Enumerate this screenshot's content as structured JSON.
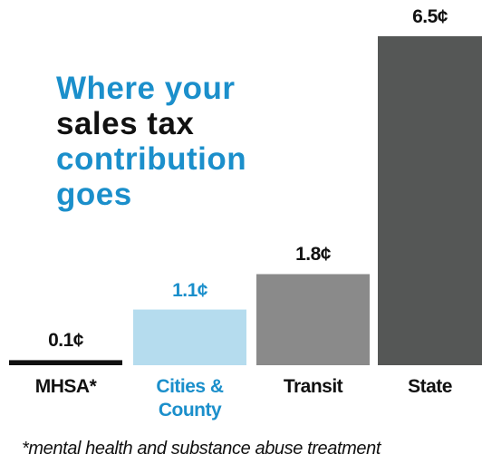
{
  "chart_data": {
    "type": "bar",
    "title_lines": [
      {
        "text": "Where your",
        "color": "#1b8fcb"
      },
      {
        "text": "sales tax",
        "color": "#111111"
      },
      {
        "text": "contribution",
        "color": "#1b8fcb"
      },
      {
        "text": "goes",
        "color": "#1b8fcb"
      }
    ],
    "categories": [
      "MHSA*",
      "Cities & County",
      "Transit",
      "State"
    ],
    "values": [
      0.1,
      1.1,
      1.8,
      6.5
    ],
    "value_labels": [
      "0.1¢",
      "1.1¢",
      "1.8¢",
      "6.5¢"
    ],
    "colors": [
      "#111111",
      "#b5dcee",
      "#8a8a8a",
      "#555756"
    ],
    "label_colors": [
      "#111111",
      "#1b8fcb",
      "#111111",
      "#111111"
    ],
    "footnote": "*mental health and substance abuse treatment"
  }
}
